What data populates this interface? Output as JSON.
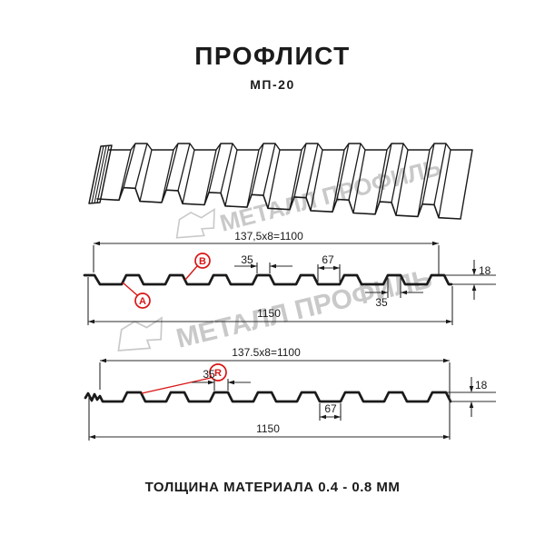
{
  "header": {
    "title": "ПРОФЛИСТ",
    "subtitle": "МП-20"
  },
  "footer": {
    "text": "ТОЛЩИНА МАТЕРИАЛА 0.4 - 0.8 ММ"
  },
  "watermark": {
    "text": "МЕТАЛЛ ПРОФИЛЬ",
    "color": "#c9c9c9"
  },
  "colors": {
    "line": "#1a1a1a",
    "thin": "#2b2b2b",
    "red": "#d91616"
  },
  "profile_top": {
    "module_label": "137,5x8=1100",
    "rib_width_top": "35",
    "rib_gap": "67",
    "height": "18",
    "rib_width_bottom": "35",
    "total_width": "1150",
    "callout_a": "A",
    "callout_b": "B"
  },
  "profile_bottom": {
    "module_label": "137.5x8=1100",
    "rib_width": "35",
    "rib_gap": "67",
    "height": "18",
    "total_width": "1150",
    "callout_r": "R"
  }
}
